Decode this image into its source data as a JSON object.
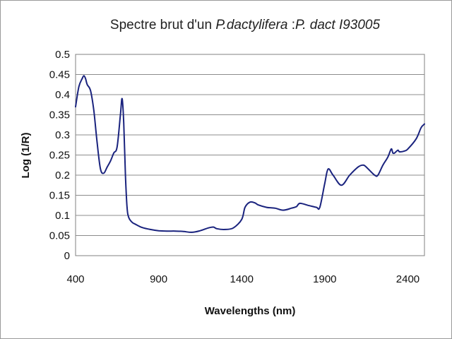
{
  "chart_data": {
    "type": "line",
    "title": {
      "prefix": "Spectre brut d'un ",
      "species": "P.dactylifera",
      "middle": " :",
      "sample": "P. dact I93005"
    },
    "xlabel": "Wavelengths (nm)",
    "ylabel": "Log (1/R)",
    "xlim": [
      400,
      2500
    ],
    "ylim": [
      0,
      0.5
    ],
    "x_ticks": [
      400,
      900,
      1400,
      1900,
      2400
    ],
    "y_ticks": [
      0,
      0.05,
      0.1,
      0.15,
      0.2,
      0.25,
      0.3,
      0.35,
      0.4,
      0.45,
      0.5
    ],
    "y_tick_labels": [
      "0",
      "0.05",
      "0.1",
      "0.15",
      "0.2",
      "0.25",
      "0.3",
      "0.35",
      "0.4",
      "0.45",
      "0.5"
    ],
    "grid": "horizontal",
    "legend": "none",
    "series": [
      {
        "name": "P. dact I93005",
        "color": "#1a237e",
        "x": [
          400,
          420,
          440,
          450,
          460,
          470,
          490,
          510,
          530,
          550,
          570,
          590,
          610,
          630,
          650,
          670,
          680,
          690,
          700,
          710,
          720,
          740,
          760,
          800,
          850,
          900,
          950,
          1000,
          1050,
          1100,
          1150,
          1200,
          1230,
          1250,
          1300,
          1350,
          1400,
          1420,
          1450,
          1480,
          1500,
          1550,
          1600,
          1650,
          1700,
          1730,
          1750,
          1800,
          1850,
          1870,
          1900,
          1920,
          1950,
          2000,
          2050,
          2100,
          2130,
          2150,
          2200,
          2220,
          2250,
          2280,
          2300,
          2310,
          2320,
          2340,
          2350,
          2380,
          2400,
          2450,
          2480,
          2500
        ],
        "y": [
          0.37,
          0.42,
          0.44,
          0.447,
          0.44,
          0.425,
          0.41,
          0.36,
          0.28,
          0.215,
          0.205,
          0.22,
          0.235,
          0.255,
          0.27,
          0.35,
          0.39,
          0.33,
          0.2,
          0.12,
          0.095,
          0.083,
          0.078,
          0.07,
          0.065,
          0.062,
          0.061,
          0.061,
          0.06,
          0.058,
          0.062,
          0.069,
          0.071,
          0.067,
          0.065,
          0.069,
          0.09,
          0.12,
          0.133,
          0.131,
          0.126,
          0.12,
          0.118,
          0.113,
          0.118,
          0.122,
          0.13,
          0.125,
          0.12,
          0.12,
          0.18,
          0.215,
          0.2,
          0.175,
          0.2,
          0.22,
          0.225,
          0.22,
          0.2,
          0.2,
          0.225,
          0.245,
          0.265,
          0.255,
          0.255,
          0.262,
          0.258,
          0.26,
          0.265,
          0.29,
          0.318,
          0.327
        ]
      }
    ]
  }
}
